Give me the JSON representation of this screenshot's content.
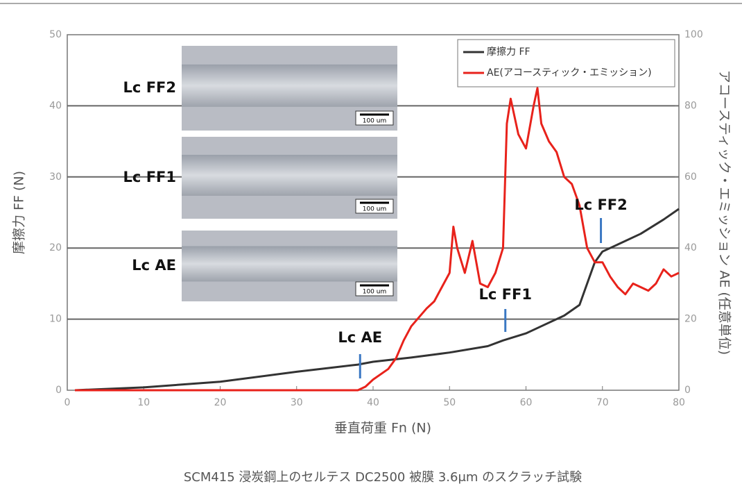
{
  "chart_data": {
    "type": "line",
    "caption": "SCM415 浸炭鋼上のセルテス DC2500 被膜 3.6μm のスクラッチ試験",
    "x_label": "垂直荷重 Fn (N)",
    "y_label": "摩擦力 FF (N)",
    "y2_label": "アコースティック・エミッション AE (任意単位)",
    "xlim": [
      0,
      80
    ],
    "xticks": [
      0,
      10,
      20,
      30,
      40,
      50,
      60,
      70,
      80
    ],
    "ylim": [
      0,
      50
    ],
    "yticks": [
      0,
      10,
      20,
      30,
      40,
      50
    ],
    "y2lim": [
      0,
      100
    ],
    "y2ticks": [
      0,
      20,
      40,
      60,
      80,
      100
    ],
    "grid": true,
    "legend": "top-right",
    "series": [
      {
        "name": "摩擦力 FF",
        "color": "#333333",
        "x": [
          1,
          10,
          20,
          30,
          34,
          38,
          40,
          45,
          50,
          55,
          57,
          60,
          62,
          65,
          67,
          68,
          69,
          70,
          72,
          75,
          78,
          80
        ],
        "values": [
          0,
          0.4,
          1.2,
          2.6,
          3.1,
          3.6,
          4,
          4.6,
          5.3,
          6.2,
          7,
          8,
          9,
          10.5,
          12,
          15,
          18,
          19.5,
          20.5,
          22,
          24,
          25.5
        ]
      },
      {
        "name": "AE(アコースティック・エミッション)",
        "color": "#e8221b",
        "axis": "y2",
        "x": [
          1,
          38,
          39,
          40,
          42,
          43,
          44,
          45,
          47,
          48,
          49,
          50,
          50.5,
          51,
          52,
          53,
          54,
          55,
          56,
          57,
          57.5,
          58,
          59,
          60,
          61,
          61.5,
          62,
          63,
          64,
          65,
          66,
          67,
          68,
          69,
          70,
          71,
          72,
          73,
          74,
          75,
          76,
          77,
          78,
          79,
          80
        ],
        "values": [
          0,
          0,
          1,
          3,
          6,
          9,
          14,
          18,
          23,
          25,
          29,
          33,
          46,
          40,
          33,
          42,
          30,
          29,
          33,
          40,
          75,
          82,
          72,
          68,
          80,
          85,
          75,
          70,
          67,
          60,
          58,
          52,
          40,
          36,
          36,
          32,
          29,
          27,
          30,
          29,
          28,
          30,
          34,
          32,
          33
        ]
      }
    ],
    "annotations": [
      {
        "text": "Lc AE",
        "x": 38.3
      },
      {
        "text": "Lc FF1",
        "x": 57.3
      },
      {
        "text": "Lc FF2",
        "x": 69.8
      }
    ],
    "insets": [
      {
        "label": "Lc FF2",
        "scale_label": "100 um"
      },
      {
        "label": "Lc FF1",
        "scale_label": "100 um"
      },
      {
        "label": "Lc AE",
        "scale_label": "100 um"
      }
    ]
  }
}
